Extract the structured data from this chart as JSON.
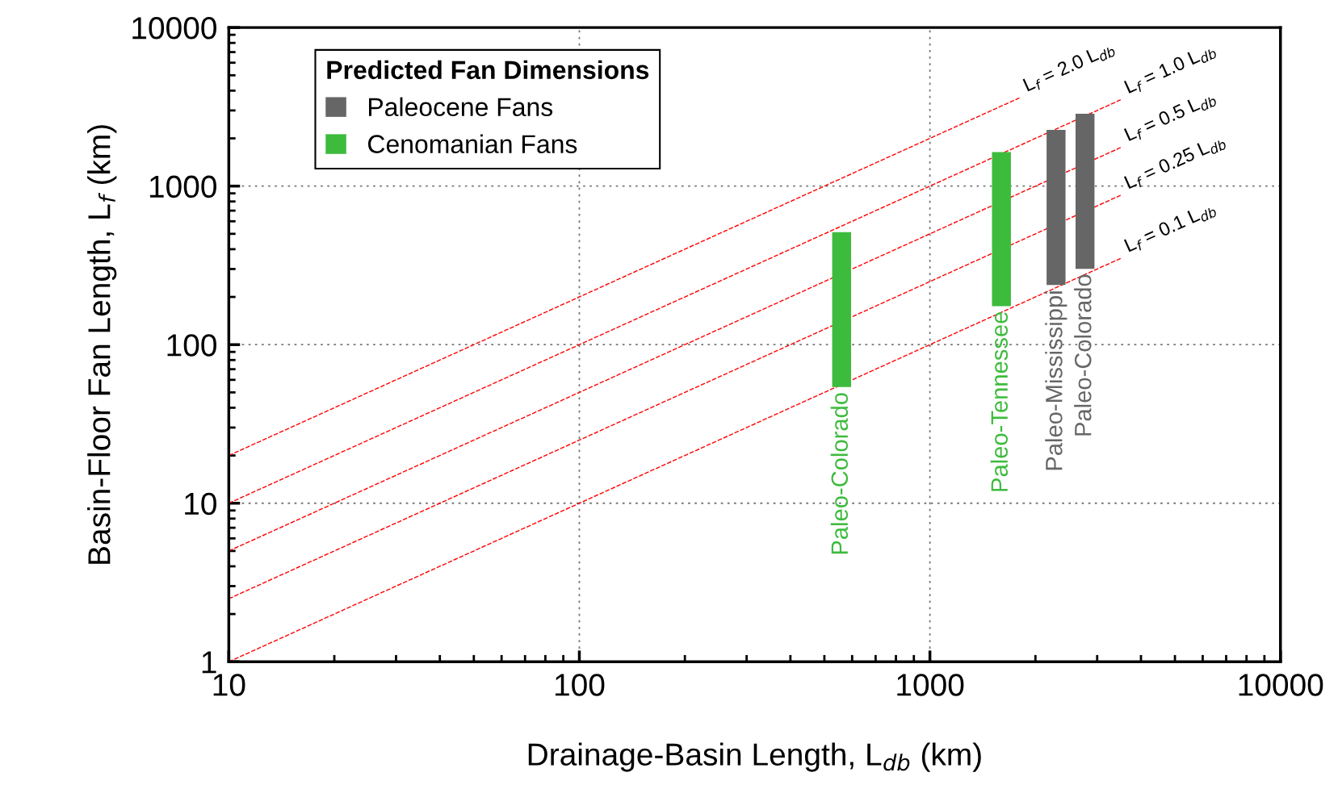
{
  "chart_data": {
    "type": "bar",
    "xlabel": "Drainage-Basin Length, L$_{db}$ (km)",
    "ylabel": "Basin-Floor Fan Length, L$_{f}$ (km)",
    "legend_title": "Predicted Fan Dimensions",
    "legend": "top left",
    "log": "xy",
    "grid": true,
    "line_style": "dashed",
    "xlim": [
      10,
      10000
    ],
    "ylim": [
      1,
      10000
    ],
    "xticks": [
      10,
      100,
      1000,
      10000
    ],
    "yticks": [
      1,
      10,
      100,
      1000,
      10000
    ],
    "series": [
      {
        "name": "Paleocene Fans",
        "color": "#666666",
        "x": [
          2290,
          2770
        ],
        "base": [
          238,
          301
        ],
        "values": [
          2022,
          2559
        ],
        "value_labels": [
          "Paleo-Mississippi",
          "Paleo-Colorado"
        ]
      },
      {
        "name": "Cenomanian Fans",
        "color": "#3dbb3d",
        "x": [
          560,
          1600
        ],
        "base": [
          54,
          175
        ],
        "values": [
          458,
          1465
        ],
        "value_labels": [
          "Paleo-Colorado",
          "Paleo-Tennessee"
        ]
      },
      {
        "name": "L$_{f}$ = 2.0 L$_{db}$",
        "type": "line",
        "color": "#ff0000",
        "x": [
          10,
          1800
        ],
        "values": [
          20,
          3600
        ]
      },
      {
        "name": "L$_{f}$ = 1.0 L$_{db}$",
        "type": "line",
        "color": "#ff0000",
        "x": [
          10,
          3500
        ],
        "values": [
          10,
          3500
        ]
      },
      {
        "name": "L$_{f}$ = 0.5 L$_{db}$",
        "type": "line",
        "color": "#ff0000",
        "x": [
          10,
          3500
        ],
        "values": [
          5,
          1750
        ]
      },
      {
        "name": "L$_{f}$ = 0.25 L$_{db}$",
        "type": "line",
        "color": "#ff0000",
        "x": [
          10,
          3500
        ],
        "values": [
          2.5,
          875
        ]
      },
      {
        "name": "L$_{f}$ = 0.1 L$_{db}$",
        "type": "line",
        "color": "#ff0000",
        "x": [
          10,
          3500
        ],
        "values": [
          1,
          350
        ]
      }
    ]
  }
}
